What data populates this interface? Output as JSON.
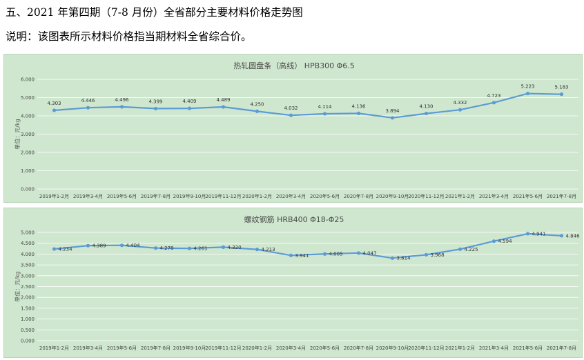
{
  "page": {
    "heading": "五、2021 年第四期（7-8 月份）全省部分主要材料价格走势图",
    "note": "说明：该图表所示材料价格指当期材料全省综合价。"
  },
  "colors": {
    "panel_bg": "#cfe7cf",
    "line": "#5b9bd5",
    "grid": "#ffffff"
  },
  "chart_data": [
    {
      "type": "line",
      "title": "热轧圆盘条（高线） HPB300  Φ6.5",
      "ylabel": "单位：元/kg",
      "ylim": [
        0,
        6
      ],
      "yticks": [
        "0.000",
        "1.000",
        "2.000",
        "3.000",
        "4.000",
        "5.000",
        "6.000"
      ],
      "categories": [
        "2019年1-2月",
        "2019年3-4月",
        "2019年5-6月",
        "2019年7-8月",
        "2019年9-10月",
        "2019年11-12月",
        "2020年1-2月",
        "2020年3-4月",
        "2020年5-6月",
        "2020年7-8月",
        "2020年9-10月",
        "2020年11-12月",
        "2021年1-2月",
        "2021年3-4月",
        "2021年5-6月",
        "2021年7-8月"
      ],
      "values": [
        4.303,
        4.446,
        4.496,
        4.399,
        4.409,
        4.489,
        4.25,
        4.032,
        4.114,
        4.136,
        3.894,
        4.13,
        4.332,
        4.723,
        5.223,
        5.183
      ],
      "value_labels": [
        "4.303",
        "4.446",
        "4.496",
        "4.399",
        "4.409",
        "4.489",
        "4.250",
        "4.032",
        "4.114",
        "4.136",
        "3.894",
        "4.130",
        "4.332",
        "4.723",
        "5.223",
        "5.183"
      ],
      "grid": true
    },
    {
      "type": "line",
      "title": "螺纹钢筋 HRB400 Φ18-Φ25",
      "ylabel": "单位：元/kg",
      "ylim": [
        0,
        5
      ],
      "yticks": [
        "0.000",
        "0.500",
        "1.000",
        "1.500",
        "2.000",
        "2.500",
        "3.000",
        "3.500",
        "4.000",
        "4.500",
        "5.000"
      ],
      "categories": [
        "2019年1-2月",
        "2019年3-4月",
        "2019年5-6月",
        "2019年7-8月",
        "2019年9-10月",
        "2019年11-12月",
        "2020年1-2月",
        "2020年3-4月",
        "2020年5-6月",
        "2020年7-8月",
        "2020年9-10月",
        "2020年11-12月",
        "2021年1-2月",
        "2021年3-4月",
        "2021年5-6月",
        "2021年7-8月"
      ],
      "values": [
        4.234,
        4.389,
        4.404,
        4.278,
        4.261,
        4.32,
        4.213,
        3.941,
        4.005,
        4.047,
        3.814,
        3.968,
        4.225,
        4.594,
        4.941,
        4.846
      ],
      "value_labels": [
        "4.234",
        "4.389",
        "4.404",
        "4.278",
        "4.261",
        "4.320",
        "4.213",
        "3.941",
        "4.005",
        "4.047",
        "3.814",
        "3.968",
        "4.225",
        "4.594",
        "4.941",
        "4.846"
      ],
      "grid": true
    }
  ]
}
